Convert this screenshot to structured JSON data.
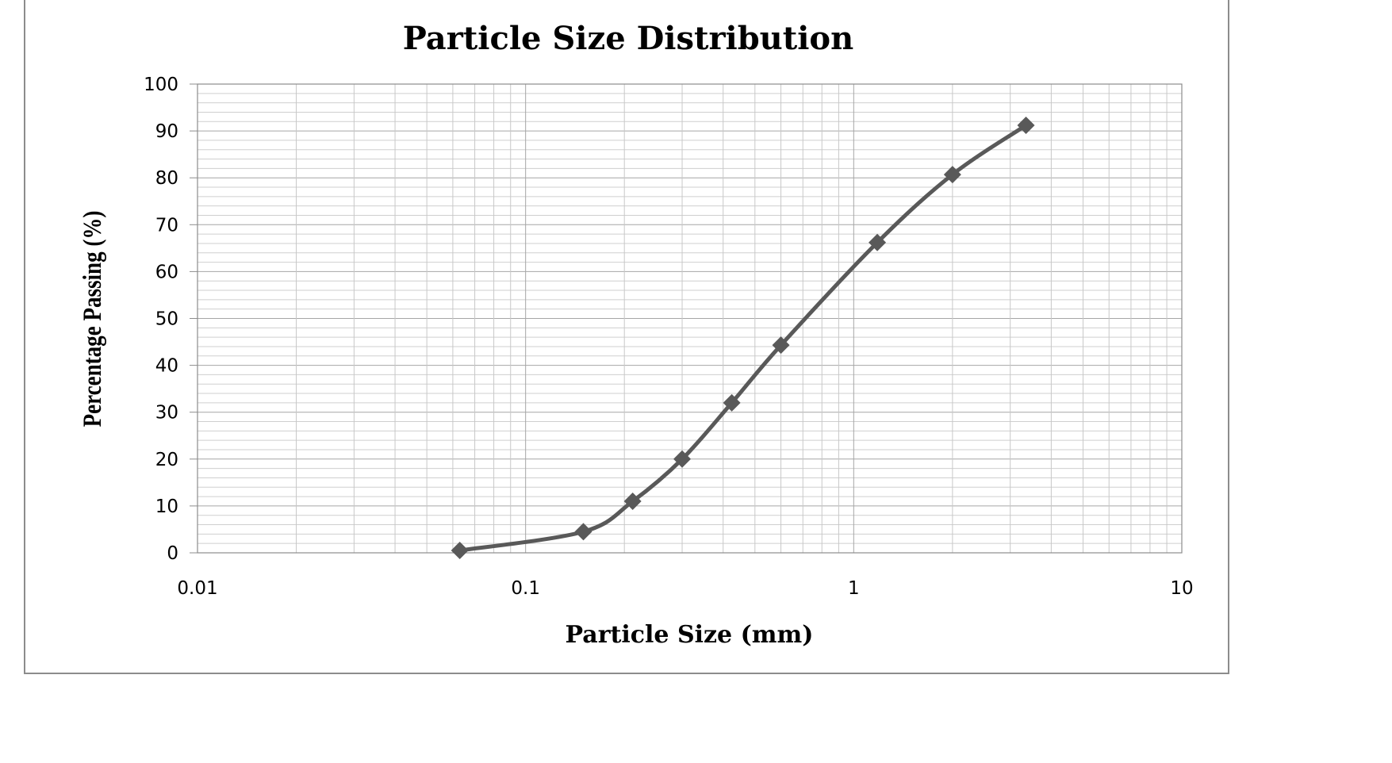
{
  "chart_data": {
    "type": "line",
    "title": "Particle Size Distribution",
    "xlabel": "Particle Size (mm)",
    "ylabel": "Percentage Passing (%)",
    "xscale": "log",
    "xlim": [
      0.01,
      10
    ],
    "ylim": [
      0,
      100
    ],
    "x_ticks": [
      0.01,
      0.1,
      1,
      10
    ],
    "x_tick_labels": [
      "0.01",
      "0.1",
      "1",
      "10"
    ],
    "y_ticks": [
      0,
      10,
      20,
      30,
      40,
      50,
      60,
      70,
      80,
      90,
      100
    ],
    "y_tick_labels": [
      "0",
      "10",
      "20",
      "30",
      "40",
      "50",
      "60",
      "70",
      "80",
      "90",
      "100"
    ],
    "grid": true,
    "legend": "none",
    "series": [
      {
        "color": "#595959",
        "marker": "diamond",
        "x": [
          0.063,
          0.15,
          0.212,
          0.3,
          0.425,
          0.6,
          1.18,
          2.0,
          3.35
        ],
        "y": [
          0.5,
          4.5,
          11,
          20,
          32,
          44.3,
          66.2,
          80.7,
          91.2
        ]
      }
    ]
  }
}
